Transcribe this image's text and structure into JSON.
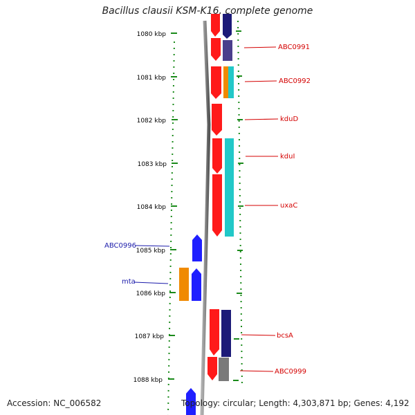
{
  "title": "Bacillus clausii KSM-K16, complete genome",
  "footer": {
    "accession": "Accession: NC_006582",
    "summary": "Topology: circular; Length: 4,303,871 bp; Genes: 4,192"
  },
  "colors": {
    "forward_gene": "#ff1a1a",
    "reverse_gene": "#1f1fff",
    "dark_navy": "#1c1a78",
    "slate_purple": "#4a3f8c",
    "teal": "#22c8c8",
    "orange": "#f08a00",
    "grey": "#7a7a7a",
    "label_right": "#d40000",
    "label_left": "#1a1aaa",
    "tick_green": "#1a8a1a"
  },
  "axis": {
    "ticks": [
      {
        "label": "1080 kbp"
      },
      {
        "label": "1081 kbp"
      },
      {
        "label": "1082 kbp"
      },
      {
        "label": "1083 kbp"
      },
      {
        "label": "1084 kbp"
      },
      {
        "label": "1085 kbp"
      },
      {
        "label": "1086 kbp"
      },
      {
        "label": "1087 kbp"
      },
      {
        "label": "1088 kbp"
      }
    ]
  },
  "gene_labels": {
    "right": [
      "ABC0991",
      "ABC0992",
      "kduD",
      "kduI",
      "uxaC",
      "bcsA",
      "ABC0999"
    ],
    "left": [
      "ABC0996",
      "mta"
    ]
  }
}
